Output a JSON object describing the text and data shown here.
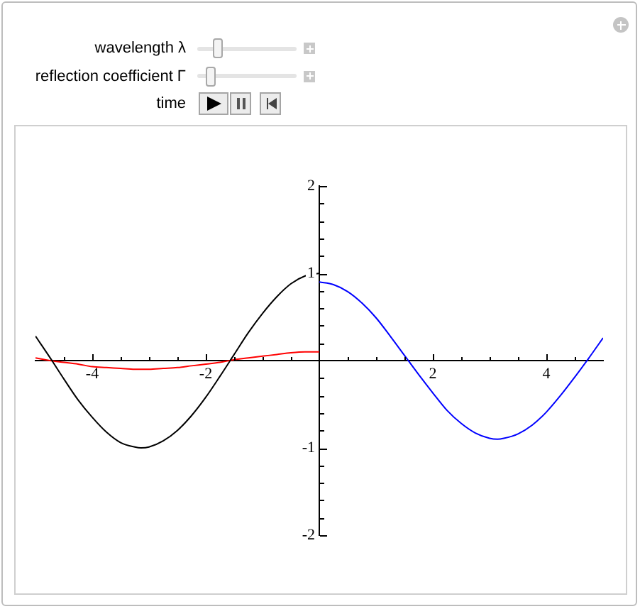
{
  "chart_data": {
    "type": "line",
    "annotations": [
      "wavelength λ",
      "reflection coefficient Γ",
      "time"
    ],
    "xlim": [
      -5,
      5
    ],
    "ylim": [
      -2,
      2
    ],
    "xticks": [
      {
        "value": -4.5,
        "label": null
      },
      -4,
      {
        "value": -3.5,
        "label": null
      },
      {
        "value": -3,
        "label": null
      },
      {
        "value": -2.5,
        "label": null
      },
      -2,
      {
        "value": -1.5,
        "label": null
      },
      {
        "value": -1,
        "label": null
      },
      {
        "value": -0.5,
        "label": null
      },
      {
        "value": 0.5,
        "label": null
      },
      {
        "value": 1,
        "label": null
      },
      {
        "value": 1.5,
        "label": null
      },
      2,
      {
        "value": 2.5,
        "label": null
      },
      {
        "value": 3,
        "label": null
      },
      {
        "value": 3.5,
        "label": null
      },
      4,
      {
        "value": 4.5,
        "label": null
      }
    ],
    "yticks": [
      -2,
      {
        "value": -1.8,
        "label": null
      },
      {
        "value": -1.6,
        "label": null
      },
      {
        "value": -1.4,
        "label": null
      },
      {
        "value": -1.2,
        "label": null
      },
      -1,
      {
        "value": -0.8,
        "label": null
      },
      {
        "value": -0.6,
        "label": null
      },
      {
        "value": -0.4,
        "label": null
      },
      {
        "value": -0.2,
        "label": null
      },
      {
        "value": 0.2,
        "label": null
      },
      {
        "value": 0.4,
        "label": null
      },
      {
        "value": 0.6,
        "label": null
      },
      {
        "value": 0.8,
        "label": null
      },
      1,
      {
        "value": 1.2,
        "label": null
      },
      {
        "value": 1.4,
        "label": null
      },
      {
        "value": 1.6,
        "label": null
      },
      {
        "value": 1.8,
        "label": null
      },
      2
    ],
    "grid": false,
    "marker": "none",
    "series": [
      {
        "color": "#000000",
        "x": [
          -5,
          -4.75,
          -4.5,
          -4.25,
          -4,
          -3.75,
          -3.5,
          -3.25,
          -3.14,
          -3,
          -2.75,
          -2.5,
          -2.25,
          -2,
          -1.75,
          -1.5,
          -1.25,
          -1,
          -0.75,
          -0.5,
          -0.25,
          0
        ],
        "values": [
          0.28,
          0.04,
          -0.21,
          -0.45,
          -0.65,
          -0.82,
          -0.94,
          -0.99,
          -1,
          -0.99,
          -0.92,
          -0.8,
          -0.63,
          -0.42,
          -0.18,
          0.07,
          0.32,
          0.54,
          0.73,
          0.88,
          0.97,
          1
        ]
      },
      {
        "color": "#ff0000",
        "x": [
          -5,
          -4.75,
          -4.5,
          -4.25,
          -4,
          -3.75,
          -3.5,
          -3.25,
          -3.14,
          -3,
          -2.75,
          -2.5,
          -2.25,
          -2,
          -1.75,
          -1.5,
          -1.25,
          -1,
          -0.75,
          -0.5,
          -0.25,
          0
        ],
        "values": [
          0.03,
          0,
          -0.02,
          -0.04,
          -0.07,
          -0.08,
          -0.09,
          -0.1,
          -0.1,
          -0.1,
          -0.09,
          -0.08,
          -0.06,
          -0.04,
          -0.02,
          0.01,
          0.03,
          0.05,
          0.07,
          0.09,
          0.1,
          0.1
        ]
      },
      {
        "color": "#0000ff",
        "x": [
          0,
          0.25,
          0.5,
          0.75,
          1,
          1.25,
          1.5,
          1.75,
          2,
          2.25,
          2.5,
          2.75,
          3,
          3.14,
          3.25,
          3.5,
          3.75,
          4,
          4.25,
          4.5,
          4.75,
          5
        ],
        "values": [
          0.9,
          0.87,
          0.79,
          0.66,
          0.49,
          0.28,
          0.06,
          -0.16,
          -0.37,
          -0.57,
          -0.72,
          -0.83,
          -0.89,
          -0.9,
          -0.89,
          -0.84,
          -0.74,
          -0.59,
          -0.4,
          -0.19,
          0.03,
          0.26
        ]
      }
    ]
  }
}
